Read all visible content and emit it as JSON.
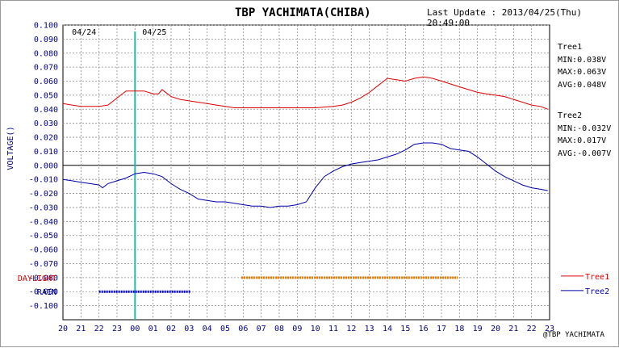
{
  "header": {
    "title": "TBP YACHIMATA(CHIBA)",
    "last_update": "Last Update : 2013/04/25(Thu) 20:49:00"
  },
  "stats": {
    "tree1": {
      "name": "Tree1",
      "min": "MIN:0.038V",
      "max": "MAX:0.063V",
      "avg": "AVG:0.048V"
    },
    "tree2": {
      "name": "Tree2",
      "min": "MIN:-0.032V",
      "max": "MAX:0.017V",
      "avg": "AVG:-0.007V"
    }
  },
  "credit": "@TBP YACHIMATA",
  "colors": {
    "tree1": "#dd0000",
    "tree2": "#0000aa",
    "daylight": "#ee7700",
    "rain": "#0000cc",
    "midnight": "#22b8b0",
    "axis_text": "#000080",
    "grid": "#8c8c8c"
  },
  "chart_data": {
    "type": "line",
    "ylabel": "VOLTAGE()",
    "ylim": [
      -0.11,
      0.1
    ],
    "y_ticks": [
      "0.100",
      "0.090",
      "0.080",
      "0.070",
      "0.060",
      "0.050",
      "0.040",
      "0.030",
      "0.020",
      "0.010",
      "0.000",
      "-0.010",
      "-0.020",
      "-0.030",
      "-0.040",
      "-0.050",
      "-0.060",
      "-0.070",
      "-0.080",
      "-0.090",
      "-0.100"
    ],
    "x_ticks": [
      "20",
      "21",
      "22",
      "23",
      "00",
      "01",
      "02",
      "03",
      "04",
      "05",
      "06",
      "07",
      "08",
      "09",
      "10",
      "11",
      "12",
      "13",
      "14",
      "15",
      "16",
      "17",
      "18",
      "19",
      "20",
      "21",
      "22",
      "23"
    ],
    "xlim_hours": [
      20,
      47
    ],
    "date_labels": [
      {
        "text": "04/24",
        "hour": 20.5
      },
      {
        "text": "04/25",
        "hour": 24.4
      }
    ],
    "midnight_hour": 24,
    "band_labels": {
      "daylight": "DAYLIGHT",
      "rain": "RAIN"
    },
    "daylight_hours": [
      29.9,
      41.9
    ],
    "rain_hours": [
      22.0,
      27.1
    ],
    "grid": true,
    "legend": "bottom-right",
    "series": [
      {
        "name": "Tree1",
        "x": [
          20,
          20.5,
          21,
          21.5,
          22,
          22.5,
          23,
          23.5,
          24,
          24.5,
          25,
          25.3,
          25.5,
          25.8,
          26,
          26.5,
          27,
          27.5,
          28,
          28.5,
          29,
          29.5,
          30,
          31,
          32,
          33,
          34,
          35,
          35.5,
          36,
          36.5,
          37,
          37.5,
          38,
          38.5,
          39,
          39.5,
          40,
          40.5,
          41,
          41.5,
          42,
          42.5,
          43,
          43.5,
          44,
          44.5,
          45,
          45.5,
          46,
          46.5,
          46.9
        ],
        "y": [
          0.044,
          0.043,
          0.042,
          0.042,
          0.042,
          0.043,
          0.048,
          0.053,
          0.053,
          0.053,
          0.051,
          0.051,
          0.054,
          0.051,
          0.049,
          0.047,
          0.046,
          0.045,
          0.044,
          0.043,
          0.042,
          0.041,
          0.041,
          0.041,
          0.041,
          0.041,
          0.041,
          0.042,
          0.043,
          0.045,
          0.048,
          0.052,
          0.057,
          0.062,
          0.061,
          0.06,
          0.062,
          0.063,
          0.062,
          0.06,
          0.058,
          0.056,
          0.054,
          0.052,
          0.051,
          0.05,
          0.049,
          0.047,
          0.045,
          0.043,
          0.042,
          0.04
        ]
      },
      {
        "name": "Tree2",
        "x": [
          20,
          20.5,
          21,
          21.5,
          22,
          22.2,
          22.5,
          23,
          23.5,
          24,
          24.5,
          25,
          25.5,
          26,
          26.5,
          27,
          27.5,
          28,
          28.5,
          29,
          29.5,
          30,
          30.5,
          31,
          31.5,
          32,
          32.5,
          33,
          33.5,
          34,
          34.5,
          35,
          35.5,
          36,
          36.5,
          37,
          37.5,
          38,
          38.5,
          39,
          39.5,
          40,
          40.5,
          41,
          41.5,
          42,
          42.5,
          43,
          43.5,
          44,
          44.5,
          45,
          45.5,
          46,
          46.5,
          46.9
        ],
        "y": [
          -0.01,
          -0.011,
          -0.012,
          -0.013,
          -0.014,
          -0.016,
          -0.013,
          -0.011,
          -0.009,
          -0.006,
          -0.005,
          -0.006,
          -0.008,
          -0.013,
          -0.017,
          -0.02,
          -0.024,
          -0.025,
          -0.026,
          -0.026,
          -0.027,
          -0.028,
          -0.029,
          -0.029,
          -0.03,
          -0.029,
          -0.029,
          -0.028,
          -0.026,
          -0.016,
          -0.008,
          -0.004,
          -0.001,
          0.001,
          0.002,
          0.003,
          0.004,
          0.006,
          0.008,
          0.011,
          0.015,
          0.016,
          0.016,
          0.015,
          0.012,
          0.011,
          0.01,
          0.006,
          0.001,
          -0.004,
          -0.008,
          -0.011,
          -0.014,
          -0.016,
          -0.017,
          -0.018
        ]
      }
    ]
  }
}
